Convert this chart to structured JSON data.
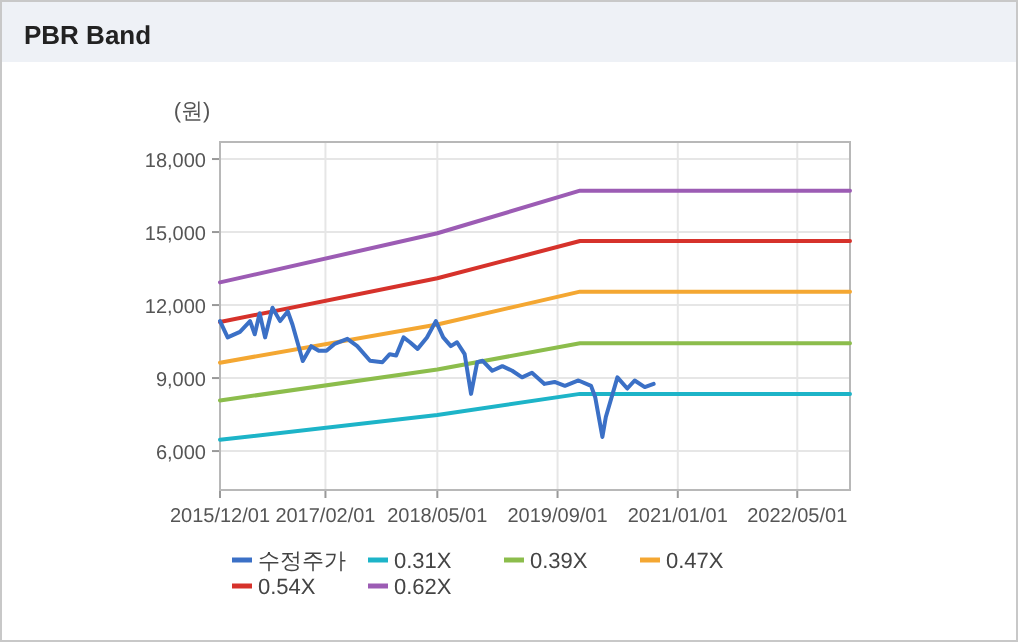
{
  "chart_data": {
    "type": "line",
    "title": "PBR Band",
    "ylabel": "(원)",
    "xlim": [
      "2015-12-01",
      "2022-12-01"
    ],
    "ylim": [
      4400,
      18700
    ],
    "xticks": [
      {
        "value": "2015-12-01",
        "label": "2015/12/01"
      },
      {
        "value": "2017-02-01",
        "label": "2017/02/01"
      },
      {
        "value": "2018-05-01",
        "label": "2018/05/01"
      },
      {
        "value": "2019-09-01",
        "label": "2019/09/01"
      },
      {
        "value": "2021-01-01",
        "label": "2021/01/01"
      },
      {
        "value": "2022-05-01",
        "label": "2022/05/01"
      }
    ],
    "yticks": [
      {
        "value": 6000,
        "label": "6,000"
      },
      {
        "value": 9000,
        "label": "9,000"
      },
      {
        "value": 12000,
        "label": "12,000"
      },
      {
        "value": 15000,
        "label": "15,000"
      },
      {
        "value": 18000,
        "label": "18,000"
      }
    ],
    "grid": true,
    "legend": "bottom",
    "marker": "none",
    "line_style": "solid",
    "series": [
      {
        "name": "수정주가",
        "color": "#3b70c6",
        "x": [
          "2015-12-01",
          "2016-01-01",
          "2016-02-20",
          "2016-04-01",
          "2016-04-20",
          "2016-05-10",
          "2016-06-01",
          "2016-07-01",
          "2016-08-01",
          "2016-09-01",
          "2016-09-20",
          "2016-11-01",
          "2016-12-05",
          "2017-01-05",
          "2017-02-05",
          "2017-03-10",
          "2017-05-01",
          "2017-06-10",
          "2017-08-01",
          "2017-09-20",
          "2017-10-20",
          "2017-11-15",
          "2017-12-15",
          "2018-01-10",
          "2018-02-10",
          "2018-03-20",
          "2018-04-25",
          "2018-05-25",
          "2018-06-25",
          "2018-07-20",
          "2018-08-20",
          "2018-09-15",
          "2018-10-10",
          "2018-11-01",
          "2018-12-10",
          "2019-01-20",
          "2019-03-01",
          "2019-04-10",
          "2019-05-20",
          "2019-07-10",
          "2019-08-20",
          "2019-10-01",
          "2019-11-25",
          "2020-01-15",
          "2020-02-01",
          "2020-03-01",
          "2020-03-15",
          "2020-05-01",
          "2020-06-10",
          "2020-07-10",
          "2020-08-20",
          "2020-09-25"
        ],
        "values": [
          11340,
          10670,
          10900,
          11340,
          10800,
          11660,
          10670,
          11890,
          11340,
          11740,
          11200,
          9700,
          10310,
          10120,
          10120,
          10400,
          10610,
          10310,
          9710,
          9650,
          9980,
          9930,
          10670,
          10470,
          10200,
          10670,
          11340,
          10670,
          10310,
          10470,
          9980,
          8350,
          9650,
          9710,
          9300,
          9490,
          9300,
          9030,
          9220,
          8760,
          8840,
          8680,
          8900,
          8680,
          8210,
          6580,
          7400,
          9030,
          8570,
          8900,
          8630,
          8760
        ]
      },
      {
        "name": "0.31X",
        "color": "#1db4c8",
        "x": [
          "2015-12-01",
          "2018-05-01",
          "2019-12-01",
          "2022-12-01"
        ],
        "values": [
          6460,
          7480,
          8350,
          8350
        ]
      },
      {
        "name": "0.39X",
        "color": "#8cbd4c",
        "x": [
          "2015-12-01",
          "2018-05-01",
          "2019-12-01",
          "2022-12-01"
        ],
        "values": [
          8080,
          9350,
          10430,
          10430
        ]
      },
      {
        "name": "0.47X",
        "color": "#f4a732",
        "x": [
          "2015-12-01",
          "2018-05-01",
          "2019-12-01",
          "2022-12-01"
        ],
        "values": [
          9630,
          11200,
          12550,
          12550
        ]
      },
      {
        "name": "0.54X",
        "color": "#d6322b",
        "x": [
          "2015-12-01",
          "2018-05-01",
          "2019-12-01",
          "2022-12-01"
        ],
        "values": [
          11300,
          13100,
          14630,
          14630
        ]
      },
      {
        "name": "0.62X",
        "color": "#9c5cb4",
        "x": [
          "2015-12-01",
          "2018-05-01",
          "2019-12-01",
          "2022-12-01"
        ],
        "values": [
          12930,
          14950,
          16700,
          16700
        ]
      }
    ]
  }
}
